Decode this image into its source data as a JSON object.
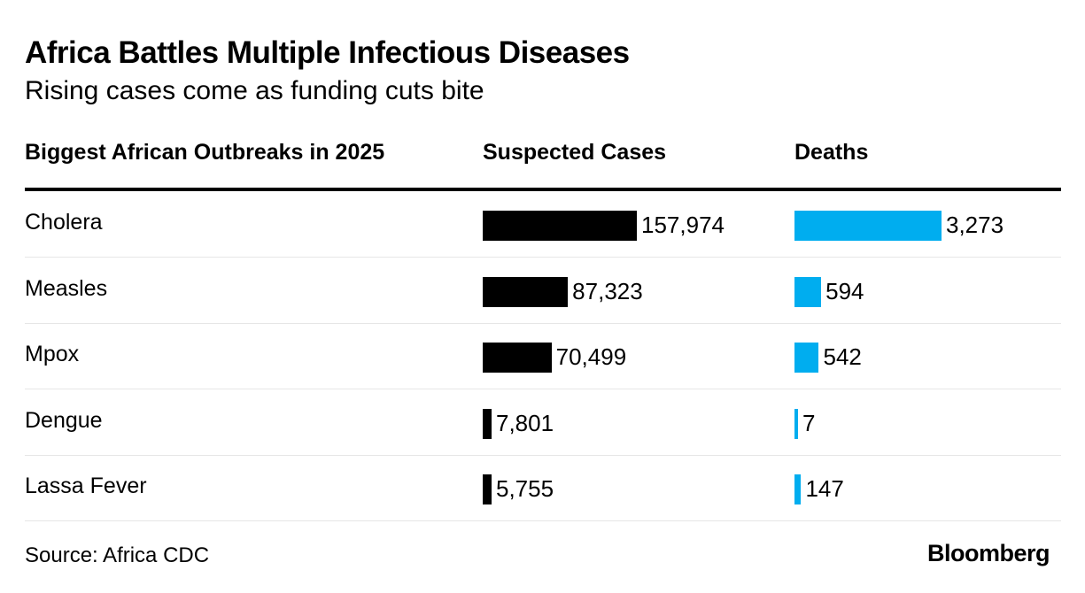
{
  "title": "Africa Battles Multiple Infectious Diseases",
  "subtitle": "Rising cases come as funding cuts bite",
  "columns": {
    "disease": "Biggest African Outbreaks in 2025",
    "cases": "Suspected Cases",
    "deaths": "Deaths"
  },
  "source": "Source: Africa CDC",
  "logo": "Bloomberg",
  "colors": {
    "cases_bar": "#000000",
    "deaths_bar": "#00adef"
  },
  "chart_data": {
    "type": "table",
    "title": "Africa Battles Multiple Infectious Diseases",
    "subtitle": "Rising cases come as funding cuts bite",
    "categories": [
      "Cholera",
      "Measles",
      "Mpox",
      "Dengue",
      "Lassa Fever"
    ],
    "series": [
      {
        "name": "Suspected Cases",
        "values": [
          157974,
          87323,
          70499,
          7801,
          5755
        ],
        "labels": [
          "157,974",
          "87,323",
          "70,499",
          "7,801",
          "5,755"
        ]
      },
      {
        "name": "Deaths",
        "values": [
          3273,
          594,
          542,
          7,
          147
        ],
        "labels": [
          "3,273",
          "594",
          "542",
          "7",
          "147"
        ]
      }
    ]
  }
}
